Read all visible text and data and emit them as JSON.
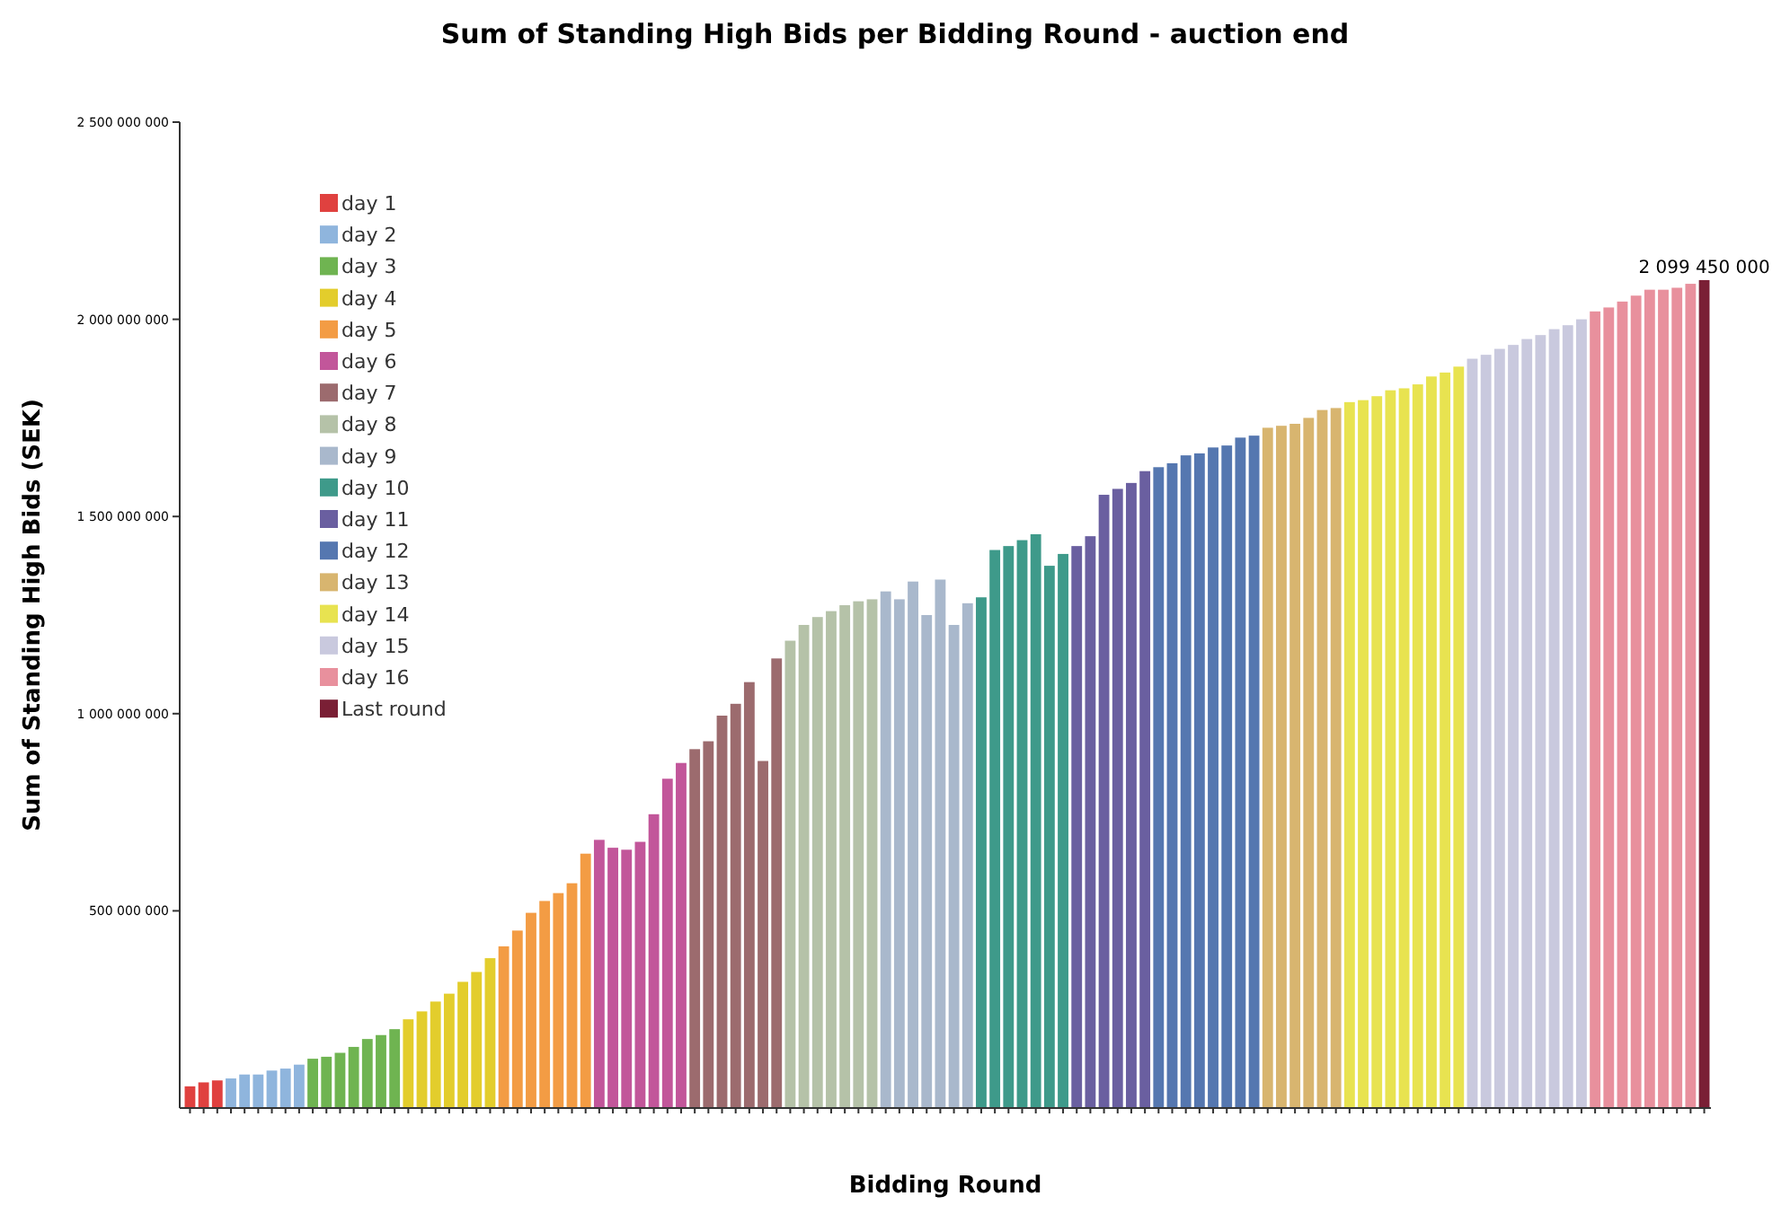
{
  "chart_data": {
    "type": "bar",
    "title": "Sum of Standing High Bids per Bidding Round - auction end",
    "xlabel": "Bidding Round",
    "ylabel": "Sum of Standing High Bids (SEK)",
    "categories": [
      null,
      null,
      null,
      null,
      null,
      null,
      null,
      null,
      null,
      null,
      null,
      null,
      null,
      null,
      null,
      null,
      null,
      null,
      null,
      null,
      null,
      null,
      null,
      null,
      null,
      null,
      null,
      null,
      null,
      null,
      null,
      null,
      null,
      null,
      null,
      null,
      null,
      null,
      null,
      null,
      null,
      null,
      null,
      null,
      null,
      null,
      null,
      null,
      null,
      null,
      null,
      null,
      null,
      null,
      null,
      null,
      null,
      null,
      null,
      null,
      null,
      null,
      null,
      null,
      null,
      null,
      null,
      null,
      null,
      null,
      null,
      null,
      null,
      null,
      null,
      null,
      null,
      null,
      null,
      null,
      null,
      null,
      null,
      null,
      null,
      null,
      null,
      null,
      null,
      null,
      null,
      null,
      null,
      null,
      null,
      null,
      null,
      null,
      null,
      null,
      null,
      null,
      null,
      null,
      null,
      null,
      null,
      null,
      null,
      null,
      null,
      null
    ],
    "series": [
      {
        "name": "day 1",
        "color": "#e0413f",
        "values": [
          55000000,
          65000000,
          70000000,
          null,
          null,
          null,
          null,
          null,
          null,
          null,
          null,
          null,
          null,
          null,
          null,
          null,
          null,
          null,
          null,
          null,
          null,
          null,
          null,
          null,
          null,
          null,
          null,
          null,
          null,
          null,
          null,
          null,
          null,
          null,
          null,
          null,
          null,
          null,
          null,
          null,
          null,
          null,
          null,
          null,
          null,
          null,
          null,
          null,
          null,
          null,
          null,
          null,
          null,
          null,
          null,
          null,
          null,
          null,
          null,
          null,
          null,
          null,
          null,
          null,
          null,
          null,
          null,
          null,
          null,
          null,
          null,
          null,
          null,
          null,
          null,
          null,
          null,
          null,
          null,
          null,
          null,
          null,
          null,
          null,
          null,
          null,
          null,
          null,
          null,
          null,
          null,
          null,
          null,
          null,
          null,
          null,
          null,
          null,
          null,
          null,
          null,
          null,
          null,
          null,
          null,
          null,
          null,
          null,
          null,
          null,
          null,
          null
        ]
      },
      {
        "name": "day 2",
        "color": "#8fb5dd",
        "values": [
          null,
          null,
          null,
          75000000,
          85000000,
          85000000,
          95000000,
          100000000,
          110000000,
          null,
          null,
          null,
          null,
          null,
          null,
          null,
          null,
          null,
          null,
          null,
          null,
          null,
          null,
          null,
          null,
          null,
          null,
          null,
          null,
          null,
          null,
          null,
          null,
          null,
          null,
          null,
          null,
          null,
          null,
          null,
          null,
          null,
          null,
          null,
          null,
          null,
          null,
          null,
          null,
          null,
          null,
          null,
          null,
          null,
          null,
          null,
          null,
          null,
          null,
          null,
          null,
          null,
          null,
          null,
          null,
          null,
          null,
          null,
          null,
          null,
          null,
          null,
          null,
          null,
          null,
          null,
          null,
          null,
          null,
          null,
          null,
          null,
          null,
          null,
          null,
          null,
          null,
          null,
          null,
          null,
          null,
          null,
          null,
          null,
          null,
          null,
          null,
          null,
          null,
          null,
          null,
          null,
          null,
          null,
          null,
          null,
          null,
          null,
          null,
          null,
          null,
          null
        ]
      },
      {
        "name": "day 3",
        "color": "#6fb451",
        "values": [
          null,
          null,
          null,
          null,
          null,
          null,
          null,
          null,
          null,
          125000000,
          130000000,
          140000000,
          155000000,
          175000000,
          185000000,
          200000000,
          null,
          null,
          null,
          null,
          null,
          null,
          null,
          null,
          null,
          null,
          null,
          null,
          null,
          null,
          null,
          null,
          null,
          null,
          null,
          null,
          null,
          null,
          null,
          null,
          null,
          null,
          null,
          null,
          null,
          null,
          null,
          null,
          null,
          null,
          null,
          null,
          null,
          null,
          null,
          null,
          null,
          null,
          null,
          null,
          null,
          null,
          null,
          null,
          null,
          null,
          null,
          null,
          null,
          null,
          null,
          null,
          null,
          null,
          null,
          null,
          null,
          null,
          null,
          null,
          null,
          null,
          null,
          null,
          null,
          null,
          null,
          null,
          null,
          null,
          null,
          null,
          null,
          null,
          null,
          null,
          null,
          null,
          null,
          null,
          null,
          null,
          null,
          null,
          null,
          null,
          null,
          null,
          null,
          null,
          null,
          null
        ]
      },
      {
        "name": "day 4",
        "color": "#e3cd2c",
        "values": [
          null,
          null,
          null,
          null,
          null,
          null,
          null,
          null,
          null,
          null,
          null,
          null,
          null,
          null,
          null,
          null,
          225000000,
          245000000,
          270000000,
          290000000,
          320000000,
          345000000,
          380000000,
          null,
          null,
          null,
          null,
          null,
          null,
          null,
          null,
          null,
          null,
          null,
          null,
          null,
          null,
          null,
          null,
          null,
          null,
          null,
          null,
          null,
          null,
          null,
          null,
          null,
          null,
          null,
          null,
          null,
          null,
          null,
          null,
          null,
          null,
          null,
          null,
          null,
          null,
          null,
          null,
          null,
          null,
          null,
          null,
          null,
          null,
          null,
          null,
          null,
          null,
          null,
          null,
          null,
          null,
          null,
          null,
          null,
          null,
          null,
          null,
          null,
          null,
          null,
          null,
          null,
          null,
          null,
          null,
          null,
          null,
          null,
          null,
          null,
          null,
          null,
          null,
          null,
          null,
          null,
          null,
          null,
          null,
          null,
          null,
          null,
          null,
          null,
          null,
          null
        ]
      },
      {
        "name": "day 5",
        "color": "#f39c44",
        "values": [
          null,
          null,
          null,
          null,
          null,
          null,
          null,
          null,
          null,
          null,
          null,
          null,
          null,
          null,
          null,
          null,
          null,
          null,
          null,
          null,
          null,
          null,
          null,
          410000000,
          450000000,
          495000000,
          525000000,
          545000000,
          570000000,
          645000000,
          null,
          null,
          null,
          null,
          null,
          null,
          null,
          null,
          null,
          null,
          null,
          null,
          null,
          null,
          null,
          null,
          null,
          null,
          null,
          null,
          null,
          null,
          null,
          null,
          null,
          null,
          null,
          null,
          null,
          null,
          null,
          null,
          null,
          null,
          null,
          null,
          null,
          null,
          null,
          null,
          null,
          null,
          null,
          null,
          null,
          null,
          null,
          null,
          null,
          null,
          null,
          null,
          null,
          null,
          null,
          null,
          null,
          null,
          null,
          null,
          null,
          null,
          null,
          null,
          null,
          null,
          null,
          null,
          null,
          null,
          null,
          null,
          null,
          null,
          null,
          null,
          null,
          null,
          null,
          null,
          null,
          null
        ]
      },
      {
        "name": "day 6",
        "color": "#c2569a",
        "values": [
          null,
          null,
          null,
          null,
          null,
          null,
          null,
          null,
          null,
          null,
          null,
          null,
          null,
          null,
          null,
          null,
          null,
          null,
          null,
          null,
          null,
          null,
          null,
          null,
          null,
          null,
          null,
          null,
          null,
          null,
          680000000,
          660000000,
          655000000,
          675000000,
          745000000,
          835000000,
          875000000,
          null,
          null,
          null,
          null,
          null,
          null,
          null,
          null,
          null,
          null,
          null,
          null,
          null,
          null,
          null,
          null,
          null,
          null,
          null,
          null,
          null,
          null,
          null,
          null,
          null,
          null,
          null,
          null,
          null,
          null,
          null,
          null,
          null,
          null,
          null,
          null,
          null,
          null,
          null,
          null,
          null,
          null,
          null,
          null,
          null,
          null,
          null,
          null,
          null,
          null,
          null,
          null,
          null,
          null,
          null,
          null,
          null,
          null,
          null,
          null,
          null,
          null,
          null,
          null,
          null,
          null,
          null,
          null,
          null,
          null,
          null,
          null,
          null,
          null,
          null
        ]
      },
      {
        "name": "day 7",
        "color": "#9c6b6e",
        "values": [
          null,
          null,
          null,
          null,
          null,
          null,
          null,
          null,
          null,
          null,
          null,
          null,
          null,
          null,
          null,
          null,
          null,
          null,
          null,
          null,
          null,
          null,
          null,
          null,
          null,
          null,
          null,
          null,
          null,
          null,
          null,
          null,
          null,
          null,
          null,
          null,
          null,
          910000000,
          930000000,
          995000000,
          1025000000,
          1080000000,
          880000000,
          1140000000,
          null,
          null,
          null,
          null,
          null,
          null,
          null,
          null,
          null,
          null,
          null,
          null,
          null,
          null,
          null,
          null,
          null,
          null,
          null,
          null,
          null,
          null,
          null,
          null,
          null,
          null,
          null,
          null,
          null,
          null,
          null,
          null,
          null,
          null,
          null,
          null,
          null,
          null,
          null,
          null,
          null,
          null,
          null,
          null,
          null,
          null,
          null,
          null,
          null,
          null,
          null,
          null,
          null,
          null,
          null,
          null,
          null,
          null,
          null,
          null,
          null,
          null,
          null,
          null,
          null,
          null,
          null,
          null
        ]
      },
      {
        "name": "day 8",
        "color": "#b5c2a8",
        "values": [
          null,
          null,
          null,
          null,
          null,
          null,
          null,
          null,
          null,
          null,
          null,
          null,
          null,
          null,
          null,
          null,
          null,
          null,
          null,
          null,
          null,
          null,
          null,
          null,
          null,
          null,
          null,
          null,
          null,
          null,
          null,
          null,
          null,
          null,
          null,
          null,
          null,
          null,
          null,
          null,
          null,
          null,
          null,
          null,
          1185000000,
          1225000000,
          1245000000,
          1260000000,
          1275000000,
          1285000000,
          1290000000,
          null,
          null,
          null,
          null,
          null,
          null,
          null,
          null,
          null,
          null,
          null,
          null,
          null,
          null,
          null,
          null,
          null,
          null,
          null,
          null,
          null,
          null,
          null,
          null,
          null,
          null,
          null,
          null,
          null,
          null,
          null,
          null,
          null,
          null,
          null,
          null,
          null,
          null,
          null,
          null,
          null,
          null,
          null,
          null,
          null,
          null,
          null,
          null,
          null,
          null,
          null,
          null,
          null,
          null,
          null,
          null,
          null,
          null,
          null,
          null,
          null
        ]
      },
      {
        "name": "day 9",
        "color": "#a9b8cc",
        "values": [
          null,
          null,
          null,
          null,
          null,
          null,
          null,
          null,
          null,
          null,
          null,
          null,
          null,
          null,
          null,
          null,
          null,
          null,
          null,
          null,
          null,
          null,
          null,
          null,
          null,
          null,
          null,
          null,
          null,
          null,
          null,
          null,
          null,
          null,
          null,
          null,
          null,
          null,
          null,
          null,
          null,
          null,
          null,
          null,
          null,
          null,
          null,
          null,
          null,
          null,
          null,
          1310000000,
          1290000000,
          1335000000,
          1250000000,
          1340000000,
          1225000000,
          1280000000,
          null,
          null,
          null,
          null,
          null,
          null,
          null,
          null,
          null,
          null,
          null,
          null,
          null,
          null,
          null,
          null,
          null,
          null,
          null,
          null,
          null,
          null,
          null,
          null,
          null,
          null,
          null,
          null,
          null,
          null,
          null,
          null,
          null,
          null,
          null,
          null,
          null,
          null,
          null,
          null,
          null,
          null,
          null,
          null,
          null,
          null,
          null,
          null,
          null,
          null,
          null,
          null,
          null,
          null
        ]
      },
      {
        "name": "day 10",
        "color": "#3e9a8a",
        "values": [
          null,
          null,
          null,
          null,
          null,
          null,
          null,
          null,
          null,
          null,
          null,
          null,
          null,
          null,
          null,
          null,
          null,
          null,
          null,
          null,
          null,
          null,
          null,
          null,
          null,
          null,
          null,
          null,
          null,
          null,
          null,
          null,
          null,
          null,
          null,
          null,
          null,
          null,
          null,
          null,
          null,
          null,
          null,
          null,
          null,
          null,
          null,
          null,
          null,
          null,
          null,
          null,
          null,
          null,
          null,
          null,
          null,
          null,
          1295000000,
          1415000000,
          1425000000,
          1440000000,
          1455000000,
          1375000000,
          1405000000,
          null,
          null,
          null,
          null,
          null,
          null,
          null,
          null,
          null,
          null,
          null,
          null,
          null,
          null,
          null,
          null,
          null,
          null,
          null,
          null,
          null,
          null,
          null,
          null,
          null,
          null,
          null,
          null,
          null,
          null,
          null,
          null,
          null,
          null,
          null,
          null,
          null,
          null,
          null,
          null,
          null,
          null,
          null,
          null,
          null,
          null,
          null
        ]
      },
      {
        "name": "day 11",
        "color": "#6a5fa0",
        "values": [
          null,
          null,
          null,
          null,
          null,
          null,
          null,
          null,
          null,
          null,
          null,
          null,
          null,
          null,
          null,
          null,
          null,
          null,
          null,
          null,
          null,
          null,
          null,
          null,
          null,
          null,
          null,
          null,
          null,
          null,
          null,
          null,
          null,
          null,
          null,
          null,
          null,
          null,
          null,
          null,
          null,
          null,
          null,
          null,
          null,
          null,
          null,
          null,
          null,
          null,
          null,
          null,
          null,
          null,
          null,
          null,
          null,
          null,
          null,
          null,
          null,
          null,
          null,
          null,
          null,
          1425000000,
          1450000000,
          1555000000,
          1570000000,
          1585000000,
          1615000000,
          null,
          null,
          null,
          null,
          null,
          null,
          null,
          null,
          null,
          null,
          null,
          null,
          null,
          null,
          null,
          null,
          null,
          null,
          null,
          null,
          null,
          null,
          null,
          null,
          null,
          null,
          null,
          null,
          null,
          null,
          null,
          null,
          null,
          null,
          null,
          null,
          null,
          null,
          null,
          null,
          null
        ]
      },
      {
        "name": "day 12",
        "color": "#5577b0",
        "values": [
          null,
          null,
          null,
          null,
          null,
          null,
          null,
          null,
          null,
          null,
          null,
          null,
          null,
          null,
          null,
          null,
          null,
          null,
          null,
          null,
          null,
          null,
          null,
          null,
          null,
          null,
          null,
          null,
          null,
          null,
          null,
          null,
          null,
          null,
          null,
          null,
          null,
          null,
          null,
          null,
          null,
          null,
          null,
          null,
          null,
          null,
          null,
          null,
          null,
          null,
          null,
          null,
          null,
          null,
          null,
          null,
          null,
          null,
          null,
          null,
          null,
          null,
          null,
          null,
          null,
          null,
          null,
          null,
          null,
          null,
          null,
          1625000000,
          1635000000,
          1655000000,
          1660000000,
          1675000000,
          1680000000,
          1700000000,
          1705000000,
          null,
          null,
          null,
          null,
          null,
          null,
          null,
          null,
          null,
          null,
          null,
          null,
          null,
          null,
          null,
          null,
          null,
          null,
          null,
          null,
          null,
          null,
          null,
          null,
          null,
          null,
          null,
          null,
          null,
          null,
          null,
          null,
          null
        ]
      },
      {
        "name": "day 13",
        "color": "#d8b56f",
        "values": [
          null,
          null,
          null,
          null,
          null,
          null,
          null,
          null,
          null,
          null,
          null,
          null,
          null,
          null,
          null,
          null,
          null,
          null,
          null,
          null,
          null,
          null,
          null,
          null,
          null,
          null,
          null,
          null,
          null,
          null,
          null,
          null,
          null,
          null,
          null,
          null,
          null,
          null,
          null,
          null,
          null,
          null,
          null,
          null,
          null,
          null,
          null,
          null,
          null,
          null,
          null,
          null,
          null,
          null,
          null,
          null,
          null,
          null,
          null,
          null,
          null,
          null,
          null,
          null,
          null,
          null,
          null,
          null,
          null,
          null,
          null,
          null,
          null,
          null,
          null,
          null,
          null,
          null,
          null,
          1725000000,
          1730000000,
          1735000000,
          1750000000,
          1770000000,
          1775000000,
          null,
          null,
          null,
          null,
          null,
          null,
          null,
          null,
          null,
          null,
          null,
          null,
          null,
          null,
          null,
          null,
          null,
          null,
          null,
          null,
          null,
          null,
          null,
          null,
          null,
          null,
          null
        ]
      },
      {
        "name": "day 14",
        "color": "#e8e350",
        "values": [
          null,
          null,
          null,
          null,
          null,
          null,
          null,
          null,
          null,
          null,
          null,
          null,
          null,
          null,
          null,
          null,
          null,
          null,
          null,
          null,
          null,
          null,
          null,
          null,
          null,
          null,
          null,
          null,
          null,
          null,
          null,
          null,
          null,
          null,
          null,
          null,
          null,
          null,
          null,
          null,
          null,
          null,
          null,
          null,
          null,
          null,
          null,
          null,
          null,
          null,
          null,
          null,
          null,
          null,
          null,
          null,
          null,
          null,
          null,
          null,
          null,
          null,
          null,
          null,
          null,
          null,
          null,
          null,
          null,
          null,
          null,
          null,
          null,
          null,
          null,
          null,
          null,
          null,
          null,
          null,
          null,
          null,
          null,
          null,
          null,
          1790000000,
          1795000000,
          1805000000,
          1820000000,
          1825000000,
          1835000000,
          1855000000,
          1865000000,
          1880000000,
          null,
          null,
          null,
          null,
          null,
          null,
          null,
          null,
          null,
          null,
          null,
          null,
          null,
          null,
          null,
          null,
          null,
          null
        ]
      },
      {
        "name": "day 15",
        "color": "#c9c9de",
        "values": [
          null,
          null,
          null,
          null,
          null,
          null,
          null,
          null,
          null,
          null,
          null,
          null,
          null,
          null,
          null,
          null,
          null,
          null,
          null,
          null,
          null,
          null,
          null,
          null,
          null,
          null,
          null,
          null,
          null,
          null,
          null,
          null,
          null,
          null,
          null,
          null,
          null,
          null,
          null,
          null,
          null,
          null,
          null,
          null,
          null,
          null,
          null,
          null,
          null,
          null,
          null,
          null,
          null,
          null,
          null,
          null,
          null,
          null,
          null,
          null,
          null,
          null,
          null,
          null,
          null,
          null,
          null,
          null,
          null,
          null,
          null,
          null,
          null,
          null,
          null,
          null,
          null,
          null,
          null,
          null,
          null,
          null,
          null,
          null,
          null,
          null,
          null,
          null,
          null,
          null,
          null,
          null,
          null,
          null,
          1900000000,
          1910000000,
          1925000000,
          1935000000,
          1950000000,
          1960000000,
          1975000000,
          1985000000,
          2000000000,
          null,
          null,
          null,
          null,
          null,
          null,
          null,
          null,
          null
        ]
      },
      {
        "name": "day 16",
        "color": "#e8909d",
        "values": [
          null,
          null,
          null,
          null,
          null,
          null,
          null,
          null,
          null,
          null,
          null,
          null,
          null,
          null,
          null,
          null,
          null,
          null,
          null,
          null,
          null,
          null,
          null,
          null,
          null,
          null,
          null,
          null,
          null,
          null,
          null,
          null,
          null,
          null,
          null,
          null,
          null,
          null,
          null,
          null,
          null,
          null,
          null,
          null,
          null,
          null,
          null,
          null,
          null,
          null,
          null,
          null,
          null,
          null,
          null,
          null,
          null,
          null,
          null,
          null,
          null,
          null,
          null,
          null,
          null,
          null,
          null,
          null,
          null,
          null,
          null,
          null,
          null,
          null,
          null,
          null,
          null,
          null,
          null,
          null,
          null,
          null,
          null,
          null,
          null,
          null,
          null,
          null,
          null,
          null,
          null,
          null,
          null,
          null,
          null,
          null,
          null,
          null,
          null,
          null,
          null,
          null,
          null,
          2020000000,
          2030000000,
          2045000000,
          2060000000,
          2075000000,
          2075000000,
          2080000000,
          2090000000,
          null
        ]
      },
      {
        "name": "Last round",
        "color": "#7a1f35",
        "values": [
          null,
          null,
          null,
          null,
          null,
          null,
          null,
          null,
          null,
          null,
          null,
          null,
          null,
          null,
          null,
          null,
          null,
          null,
          null,
          null,
          null,
          null,
          null,
          null,
          null,
          null,
          null,
          null,
          null,
          null,
          null,
          null,
          null,
          null,
          null,
          null,
          null,
          null,
          null,
          null,
          null,
          null,
          null,
          null,
          null,
          null,
          null,
          null,
          null,
          null,
          null,
          null,
          null,
          null,
          null,
          null,
          null,
          null,
          null,
          null,
          null,
          null,
          null,
          null,
          null,
          null,
          null,
          null,
          null,
          null,
          null,
          null,
          null,
          null,
          null,
          null,
          null,
          null,
          null,
          null,
          null,
          null,
          null,
          null,
          null,
          null,
          null,
          null,
          null,
          null,
          null,
          null,
          null,
          null,
          null,
          null,
          null,
          null,
          null,
          null,
          null,
          null,
          null,
          null,
          null,
          null,
          null,
          null,
          null,
          null,
          null,
          2099450000
        ],
        "value_labels": [
          null,
          null,
          null,
          null,
          null,
          null,
          null,
          null,
          null,
          null,
          null,
          null,
          null,
          null,
          null,
          null,
          null,
          null,
          null,
          null,
          null,
          null,
          null,
          null,
          null,
          null,
          null,
          null,
          null,
          null,
          null,
          null,
          null,
          null,
          null,
          null,
          null,
          null,
          null,
          null,
          null,
          null,
          null,
          null,
          null,
          null,
          null,
          null,
          null,
          null,
          null,
          null,
          null,
          null,
          null,
          null,
          null,
          null,
          null,
          null,
          null,
          null,
          null,
          null,
          null,
          null,
          null,
          null,
          null,
          null,
          null,
          null,
          null,
          null,
          null,
          null,
          null,
          null,
          null,
          null,
          null,
          null,
          null,
          null,
          null,
          null,
          null,
          null,
          null,
          null,
          null,
          null,
          null,
          null,
          null,
          null,
          null,
          null,
          null,
          null,
          null,
          null,
          null,
          null,
          null,
          null,
          null,
          null,
          null,
          null,
          null,
          "2 099 450 000"
        ]
      }
    ],
    "ylim": [
      0,
      2500000000
    ],
    "yticks": [
      {
        "value": 500000000,
        "label": "500 000 000"
      },
      {
        "value": 1000000000,
        "label": "1 000 000 000"
      },
      {
        "value": 1500000000,
        "label": "1 500 000 000"
      },
      {
        "value": 2000000000,
        "label": "2 000 000 000"
      },
      {
        "value": 2500000000,
        "label": "2 500 000 000"
      }
    ],
    "legend": "top left"
  }
}
